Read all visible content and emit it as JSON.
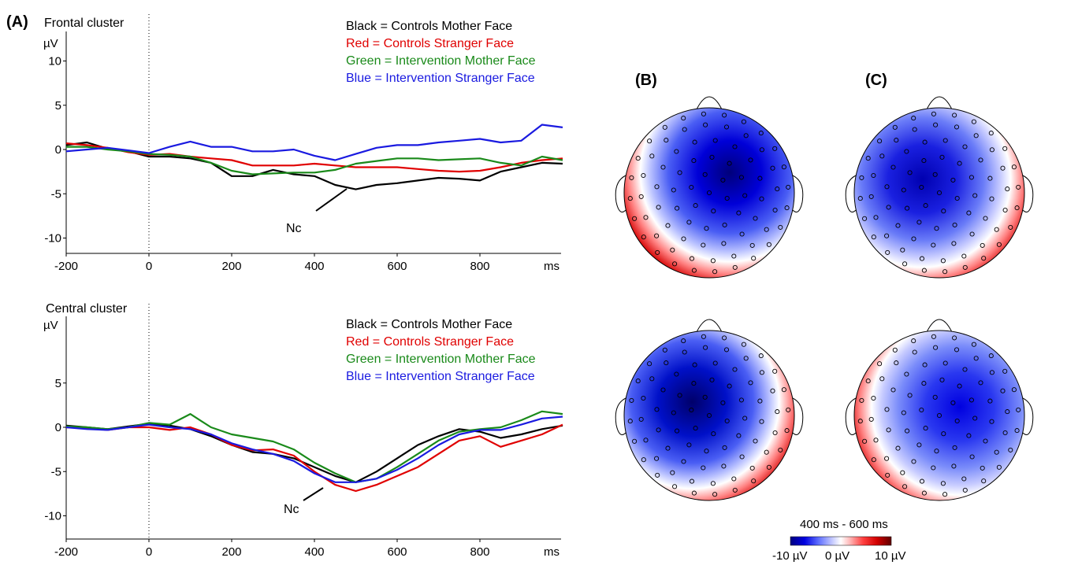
{
  "panel_labels": {
    "a": "(A)",
    "b": "(B)",
    "c": "(C)"
  },
  "legend": [
    {
      "text": "Black = Controls Mother Face",
      "color": "#000000"
    },
    {
      "text": "Red = Controls Stranger Face",
      "color": "#e00000"
    },
    {
      "text": "Green = Intervention Mother Face",
      "color": "#1a8a1a"
    },
    {
      "text": "Blue = Intervention Stranger Face",
      "color": "#1a1ae0"
    }
  ],
  "chart_data": [
    {
      "type": "line",
      "title": "Frontal cluster",
      "ylabel": "µV",
      "xlabel": "ms",
      "xlim": [
        -200,
        1000
      ],
      "ylim": [
        -12,
        12
      ],
      "x_ticks": [
        "-200",
        "0",
        "200",
        "400",
        "600",
        "800",
        "ms"
      ],
      "y_ticks": [
        "10",
        "5",
        "0",
        "-5",
        "-10"
      ],
      "annotation": "Nc",
      "series": [
        {
          "name": "Black = Controls Mother Face",
          "color": "#000000",
          "x": [
            -200,
            -150,
            -100,
            -50,
            0,
            50,
            100,
            150,
            200,
            250,
            300,
            350,
            400,
            450,
            500,
            550,
            600,
            650,
            700,
            750,
            800,
            850,
            900,
            950,
            1000
          ],
          "values": [
            0.5,
            0.8,
            0.1,
            -0.2,
            -0.8,
            -0.8,
            -1.0,
            -1.5,
            -3.0,
            -3.0,
            -2.3,
            -2.8,
            -3.0,
            -4.0,
            -4.5,
            -4.0,
            -3.8,
            -3.5,
            -3.2,
            -3.3,
            -3.5,
            -2.5,
            -2.0,
            -1.5,
            -1.6
          ]
        },
        {
          "name": "Red = Controls Stranger Face",
          "color": "#e00000",
          "x": [
            -200,
            -150,
            -100,
            -50,
            0,
            50,
            100,
            150,
            200,
            250,
            300,
            350,
            400,
            450,
            500,
            550,
            600,
            650,
            700,
            750,
            800,
            850,
            900,
            950,
            1000
          ],
          "values": [
            0.7,
            0.5,
            0.2,
            -0.3,
            -0.6,
            -0.5,
            -0.8,
            -1.0,
            -1.2,
            -1.8,
            -1.8,
            -1.8,
            -1.6,
            -1.8,
            -2.0,
            -2.0,
            -2.0,
            -2.2,
            -2.4,
            -2.5,
            -2.4,
            -2.0,
            -1.5,
            -1.2,
            -1.0
          ]
        },
        {
          "name": "Green = Intervention Mother Face",
          "color": "#1a8a1a",
          "x": [
            -200,
            -150,
            -100,
            -50,
            0,
            50,
            100,
            150,
            200,
            250,
            300,
            350,
            400,
            450,
            500,
            550,
            600,
            650,
            700,
            750,
            800,
            850,
            900,
            950,
            1000
          ],
          "values": [
            0.3,
            0.3,
            0.0,
            -0.2,
            -0.5,
            -0.6,
            -0.8,
            -1.5,
            -2.4,
            -2.8,
            -2.7,
            -2.6,
            -2.6,
            -2.3,
            -1.6,
            -1.3,
            -1.0,
            -1.0,
            -1.2,
            -1.1,
            -1.0,
            -1.5,
            -1.8,
            -0.8,
            -1.2
          ]
        },
        {
          "name": "Blue = Intervention Stranger Face",
          "color": "#1a1ae0",
          "x": [
            -200,
            -150,
            -100,
            -50,
            0,
            50,
            100,
            150,
            200,
            250,
            300,
            350,
            400,
            450,
            500,
            550,
            600,
            650,
            700,
            750,
            800,
            850,
            900,
            950,
            1000
          ],
          "values": [
            -0.2,
            0.0,
            0.2,
            -0.1,
            -0.4,
            0.3,
            0.9,
            0.3,
            0.3,
            -0.2,
            -0.2,
            0.0,
            -0.7,
            -1.2,
            -0.5,
            0.2,
            0.5,
            0.5,
            0.8,
            1.0,
            1.2,
            0.8,
            1.0,
            2.8,
            2.5
          ]
        }
      ]
    },
    {
      "type": "line",
      "title": "Central cluster",
      "ylabel": "µV",
      "xlabel": "ms",
      "xlim": [
        -200,
        1000
      ],
      "ylim": [
        -12,
        12
      ],
      "x_ticks": [
        "-200",
        "0",
        "200",
        "400",
        "600",
        "800",
        "ms"
      ],
      "y_ticks": [
        "5",
        "0",
        "-5",
        "-10"
      ],
      "annotation": "Nc",
      "series": [
        {
          "name": "Black = Controls Mother Face",
          "color": "#000000",
          "x": [
            -200,
            -150,
            -100,
            -50,
            0,
            50,
            100,
            150,
            200,
            250,
            300,
            350,
            400,
            450,
            500,
            550,
            600,
            650,
            700,
            750,
            800,
            850,
            900,
            950,
            1000
          ],
          "values": [
            0.2,
            0.0,
            -0.2,
            0.1,
            0.4,
            0.2,
            -0.2,
            -1.0,
            -2.0,
            -2.8,
            -3.0,
            -3.5,
            -4.5,
            -5.5,
            -6.2,
            -5.0,
            -3.5,
            -2.0,
            -1.0,
            -0.2,
            -0.5,
            -1.2,
            -0.8,
            -0.2,
            0.2
          ]
        },
        {
          "name": "Red = Controls Stranger Face",
          "color": "#e00000",
          "x": [
            -200,
            -150,
            -100,
            -50,
            0,
            50,
            100,
            150,
            200,
            250,
            300,
            350,
            400,
            450,
            500,
            550,
            600,
            650,
            700,
            750,
            800,
            850,
            900,
            950,
            1000
          ],
          "values": [
            0.0,
            -0.1,
            -0.3,
            0.0,
            0.0,
            -0.3,
            0.0,
            -0.8,
            -2.0,
            -2.6,
            -2.5,
            -3.2,
            -5.0,
            -6.5,
            -7.2,
            -6.5,
            -5.5,
            -4.5,
            -3.0,
            -1.5,
            -1.0,
            -2.2,
            -1.5,
            -0.8,
            0.3
          ]
        },
        {
          "name": "Green = Intervention Mother Face",
          "color": "#1a8a1a",
          "x": [
            -200,
            -150,
            -100,
            -50,
            0,
            50,
            100,
            150,
            200,
            250,
            300,
            350,
            400,
            450,
            500,
            550,
            600,
            650,
            700,
            750,
            800,
            850,
            900,
            950,
            1000
          ],
          "values": [
            0.1,
            0.0,
            -0.2,
            0.0,
            0.5,
            0.3,
            1.5,
            0.0,
            -0.8,
            -1.2,
            -1.6,
            -2.5,
            -4.0,
            -5.2,
            -6.2,
            -5.8,
            -4.5,
            -3.0,
            -1.5,
            -0.5,
            -0.2,
            0.0,
            0.8,
            1.8,
            1.5
          ]
        },
        {
          "name": "Blue = Intervention Stranger Face",
          "color": "#1a1ae0",
          "x": [
            -200,
            -150,
            -100,
            -50,
            0,
            50,
            100,
            150,
            200,
            250,
            300,
            350,
            400,
            450,
            500,
            550,
            600,
            650,
            700,
            750,
            800,
            850,
            900,
            950,
            1000
          ],
          "values": [
            0.0,
            -0.2,
            -0.3,
            0.0,
            0.3,
            0.0,
            -0.2,
            -0.8,
            -1.8,
            -2.5,
            -3.0,
            -3.8,
            -5.2,
            -6.2,
            -6.2,
            -5.8,
            -4.8,
            -3.5,
            -2.0,
            -0.8,
            -0.3,
            -0.3,
            0.3,
            1.0,
            1.2
          ]
        }
      ]
    },
    {
      "type": "heatmap",
      "subtype": "scalp-topography",
      "window_label": "400 ms - 600 ms",
      "colorbar": {
        "min_label": "-10 µV",
        "mid_label": "0 µV",
        "max_label": "10 µV",
        "colors": [
          "#000080",
          "#0000e0",
          "#6070ff",
          "#c8ccff",
          "#ffffff",
          "#ffc0c0",
          "#ff4040",
          "#d00000",
          "#600000"
        ]
      },
      "maps": [
        {
          "panel": "(B)",
          "row": "Frontal",
          "min_center": "right-central"
        },
        {
          "panel": "(C)",
          "row": "Frontal",
          "min_center": "left-central"
        },
        {
          "panel": "(B)",
          "row": "Central",
          "min_center": "left-central"
        },
        {
          "panel": "(C)",
          "row": "Central",
          "min_center": "right-central"
        }
      ]
    }
  ]
}
